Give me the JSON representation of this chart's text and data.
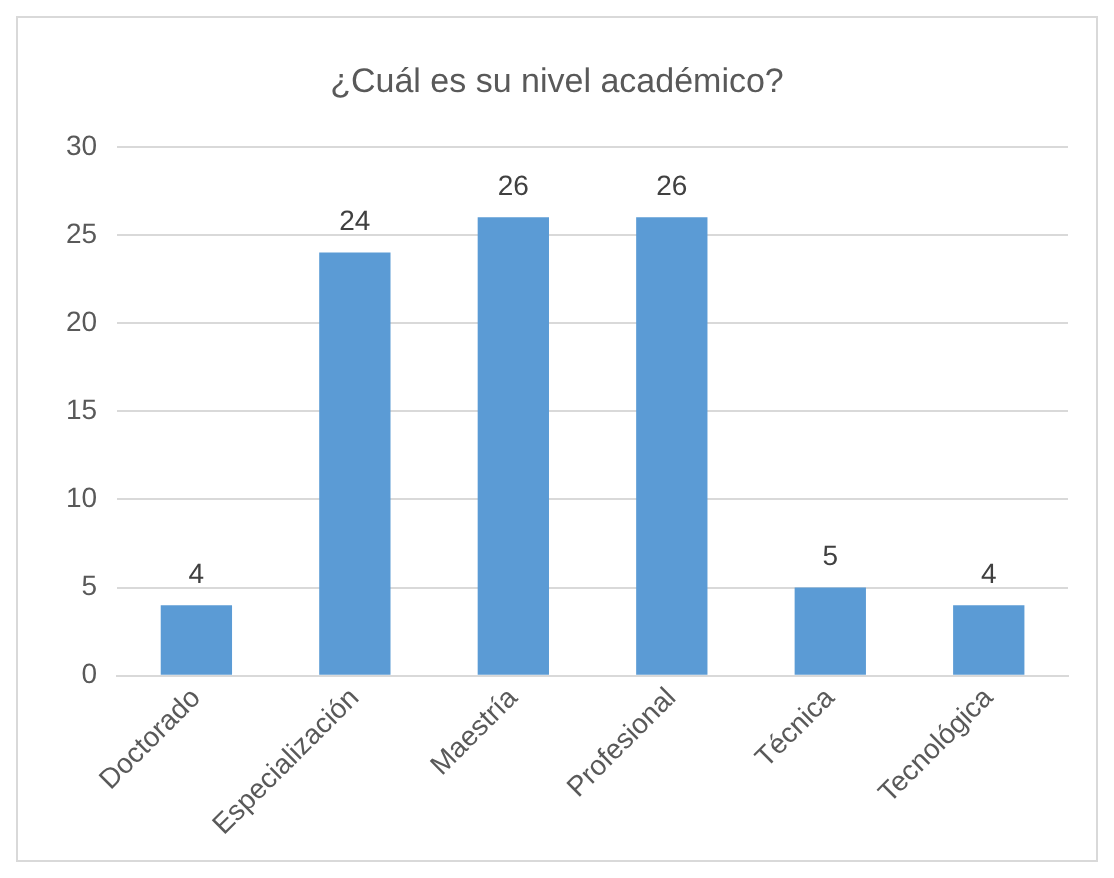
{
  "chart_data": {
    "type": "bar",
    "title": "¿Cuál es su nivel académico?",
    "categories": [
      "Doctorado",
      "Especialización",
      "Maestría",
      "Profesional",
      "Técnica",
      "Tecnológica"
    ],
    "values": [
      4,
      24,
      26,
      26,
      5,
      4
    ],
    "color": "#5b9bd5",
    "ylim": [
      0,
      30
    ],
    "yticks": [
      0,
      5,
      10,
      15,
      20,
      25,
      30
    ],
    "grid": "y",
    "data_labels": true
  }
}
